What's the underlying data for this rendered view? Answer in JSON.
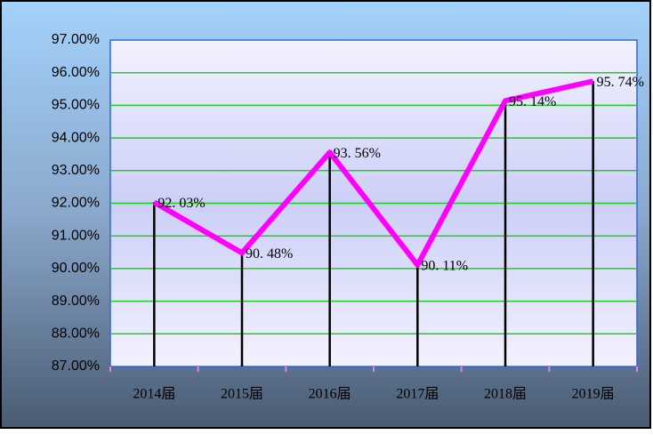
{
  "chart_data": {
    "type": "line",
    "categories": [
      "2014届",
      "2015届",
      "2016届",
      "2017届",
      "2018届",
      "2019届"
    ],
    "series": [
      {
        "color": "#ff00ff",
        "values": [
          92.03,
          90.48,
          93.56,
          90.11,
          95.14,
          95.74
        ],
        "value_labels": [
          "92. 03%",
          "90. 48%",
          "93. 56%",
          "90. 11%",
          "95. 14%",
          "95. 74%"
        ]
      }
    ],
    "ylim": [
      87,
      97
    ],
    "yticks": [
      {
        "value": 87,
        "label": "87.00%"
      },
      {
        "value": 88,
        "label": "88.00%"
      },
      {
        "value": 89,
        "label": "89.00%"
      },
      {
        "value": 90,
        "label": "90.00%"
      },
      {
        "value": 91,
        "label": "91.00%"
      },
      {
        "value": 92,
        "label": "92.00%"
      },
      {
        "value": 93,
        "label": "93.00%"
      },
      {
        "value": 94,
        "label": "94.00%"
      },
      {
        "value": 95,
        "label": "95.00%"
      },
      {
        "value": 96,
        "label": "96.00%"
      },
      {
        "value": 97,
        "label": "97.00%"
      }
    ],
    "grid": true,
    "grid_color": "#22cc22",
    "drop_lines": true
  }
}
